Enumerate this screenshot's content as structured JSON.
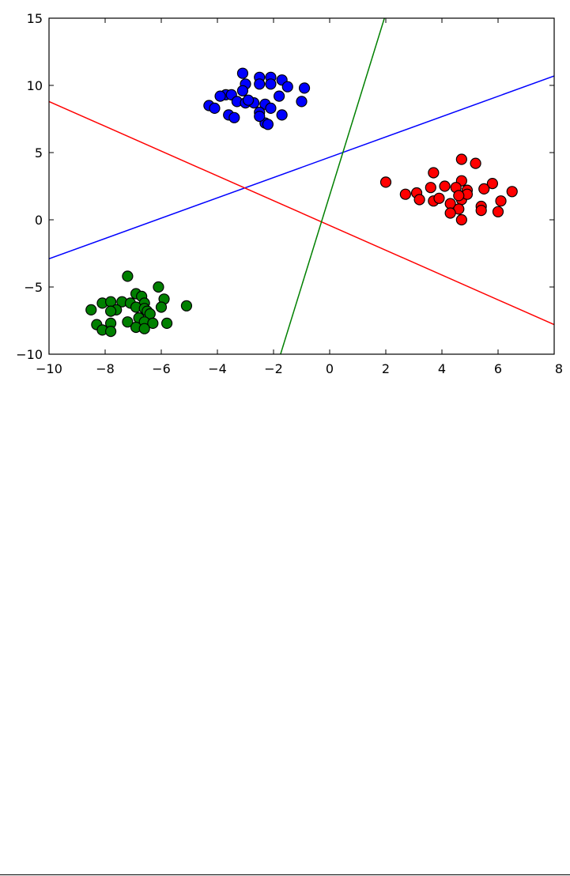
{
  "chart_data": {
    "type": "scatter",
    "title": "",
    "xlabel": "",
    "ylabel": "",
    "xlim": [
      -10,
      8
    ],
    "ylim": [
      -10,
      15
    ],
    "grid": false,
    "xticks": [
      -10,
      -8,
      -6,
      -4,
      -2,
      0,
      2,
      4,
      6,
      8
    ],
    "yticks": [
      -10,
      -5,
      0,
      5,
      10,
      15
    ],
    "xtick_labels": [
      "−10",
      "−8",
      "−6",
      "−4",
      "−2",
      "0",
      "2",
      "4",
      "6",
      "8"
    ],
    "ytick_labels": [
      "−10",
      "−5",
      "0",
      "5",
      "10",
      "15"
    ],
    "series": [
      {
        "color": "#0000ff",
        "points": [
          [
            -3.1,
            10.9
          ],
          [
            -2.5,
            10.6
          ],
          [
            -2.1,
            10.6
          ],
          [
            -1.7,
            10.4
          ],
          [
            -3.0,
            10.1
          ],
          [
            -2.5,
            10.1
          ],
          [
            -2.1,
            10.1
          ],
          [
            -1.5,
            9.9
          ],
          [
            -0.9,
            9.8
          ],
          [
            -3.1,
            9.6
          ],
          [
            -3.7,
            9.3
          ],
          [
            -3.9,
            9.2
          ],
          [
            -3.5,
            9.3
          ],
          [
            -1.8,
            9.2
          ],
          [
            -3.3,
            8.8
          ],
          [
            -3.0,
            8.7
          ],
          [
            -2.7,
            8.7
          ],
          [
            -2.3,
            8.6
          ],
          [
            -1.0,
            8.8
          ],
          [
            -4.3,
            8.5
          ],
          [
            -4.1,
            8.3
          ],
          [
            -2.5,
            8.0
          ],
          [
            -2.1,
            8.3
          ],
          [
            -3.6,
            7.8
          ],
          [
            -3.4,
            7.6
          ],
          [
            -1.7,
            7.8
          ],
          [
            -2.3,
            7.2
          ],
          [
            -2.2,
            7.1
          ],
          [
            -2.5,
            7.7
          ],
          [
            -2.9,
            8.9
          ]
        ]
      },
      {
        "color": "#ff0000",
        "points": [
          [
            4.7,
            4.5
          ],
          [
            5.2,
            4.2
          ],
          [
            3.7,
            3.5
          ],
          [
            4.7,
            2.9
          ],
          [
            5.8,
            2.7
          ],
          [
            2.0,
            2.8
          ],
          [
            3.6,
            2.4
          ],
          [
            4.1,
            2.5
          ],
          [
            4.5,
            2.4
          ],
          [
            4.9,
            2.2
          ],
          [
            5.5,
            2.3
          ],
          [
            6.5,
            2.1
          ],
          [
            2.7,
            1.9
          ],
          [
            3.1,
            2.0
          ],
          [
            3.2,
            1.5
          ],
          [
            3.7,
            1.4
          ],
          [
            3.9,
            1.6
          ],
          [
            4.7,
            1.5
          ],
          [
            4.3,
            1.2
          ],
          [
            6.1,
            1.4
          ],
          [
            5.4,
            1.0
          ],
          [
            4.6,
            0.8
          ],
          [
            5.4,
            0.7
          ],
          [
            4.3,
            0.5
          ],
          [
            6.0,
            0.6
          ],
          [
            4.7,
            0.0
          ],
          [
            4.9,
            1.9
          ],
          [
            4.6,
            1.8
          ]
        ]
      },
      {
        "color": "#008000",
        "points": [
          [
            -7.2,
            -4.2
          ],
          [
            -6.1,
            -5.0
          ],
          [
            -6.9,
            -5.5
          ],
          [
            -6.7,
            -5.7
          ],
          [
            -5.9,
            -5.9
          ],
          [
            -7.4,
            -6.1
          ],
          [
            -7.1,
            -6.2
          ],
          [
            -6.6,
            -6.2
          ],
          [
            -8.1,
            -6.2
          ],
          [
            -7.8,
            -6.1
          ],
          [
            -5.1,
            -6.4
          ],
          [
            -7.6,
            -6.7
          ],
          [
            -7.8,
            -6.8
          ],
          [
            -8.5,
            -6.7
          ],
          [
            -6.9,
            -6.5
          ],
          [
            -6.6,
            -6.6
          ],
          [
            -6.0,
            -6.5
          ],
          [
            -6.5,
            -6.8
          ],
          [
            -6.4,
            -7.0
          ],
          [
            -6.8,
            -7.3
          ],
          [
            -7.2,
            -7.6
          ],
          [
            -6.6,
            -7.6
          ],
          [
            -6.3,
            -7.7
          ],
          [
            -5.8,
            -7.7
          ],
          [
            -7.8,
            -7.7
          ],
          [
            -8.3,
            -7.8
          ],
          [
            -8.1,
            -8.2
          ],
          [
            -7.8,
            -8.3
          ],
          [
            -6.9,
            -8.0
          ],
          [
            -6.6,
            -8.1
          ]
        ]
      }
    ],
    "lines": [
      {
        "color": "#0000ff",
        "x": [
          -10,
          8
        ],
        "y": [
          -2.9,
          10.7
        ]
      },
      {
        "color": "#ff0000",
        "x": [
          -10,
          8
        ],
        "y": [
          8.8,
          -7.8
        ]
      },
      {
        "color": "#008000",
        "x": [
          -1.75,
          1.95
        ],
        "y": [
          -10,
          15
        ]
      }
    ]
  }
}
